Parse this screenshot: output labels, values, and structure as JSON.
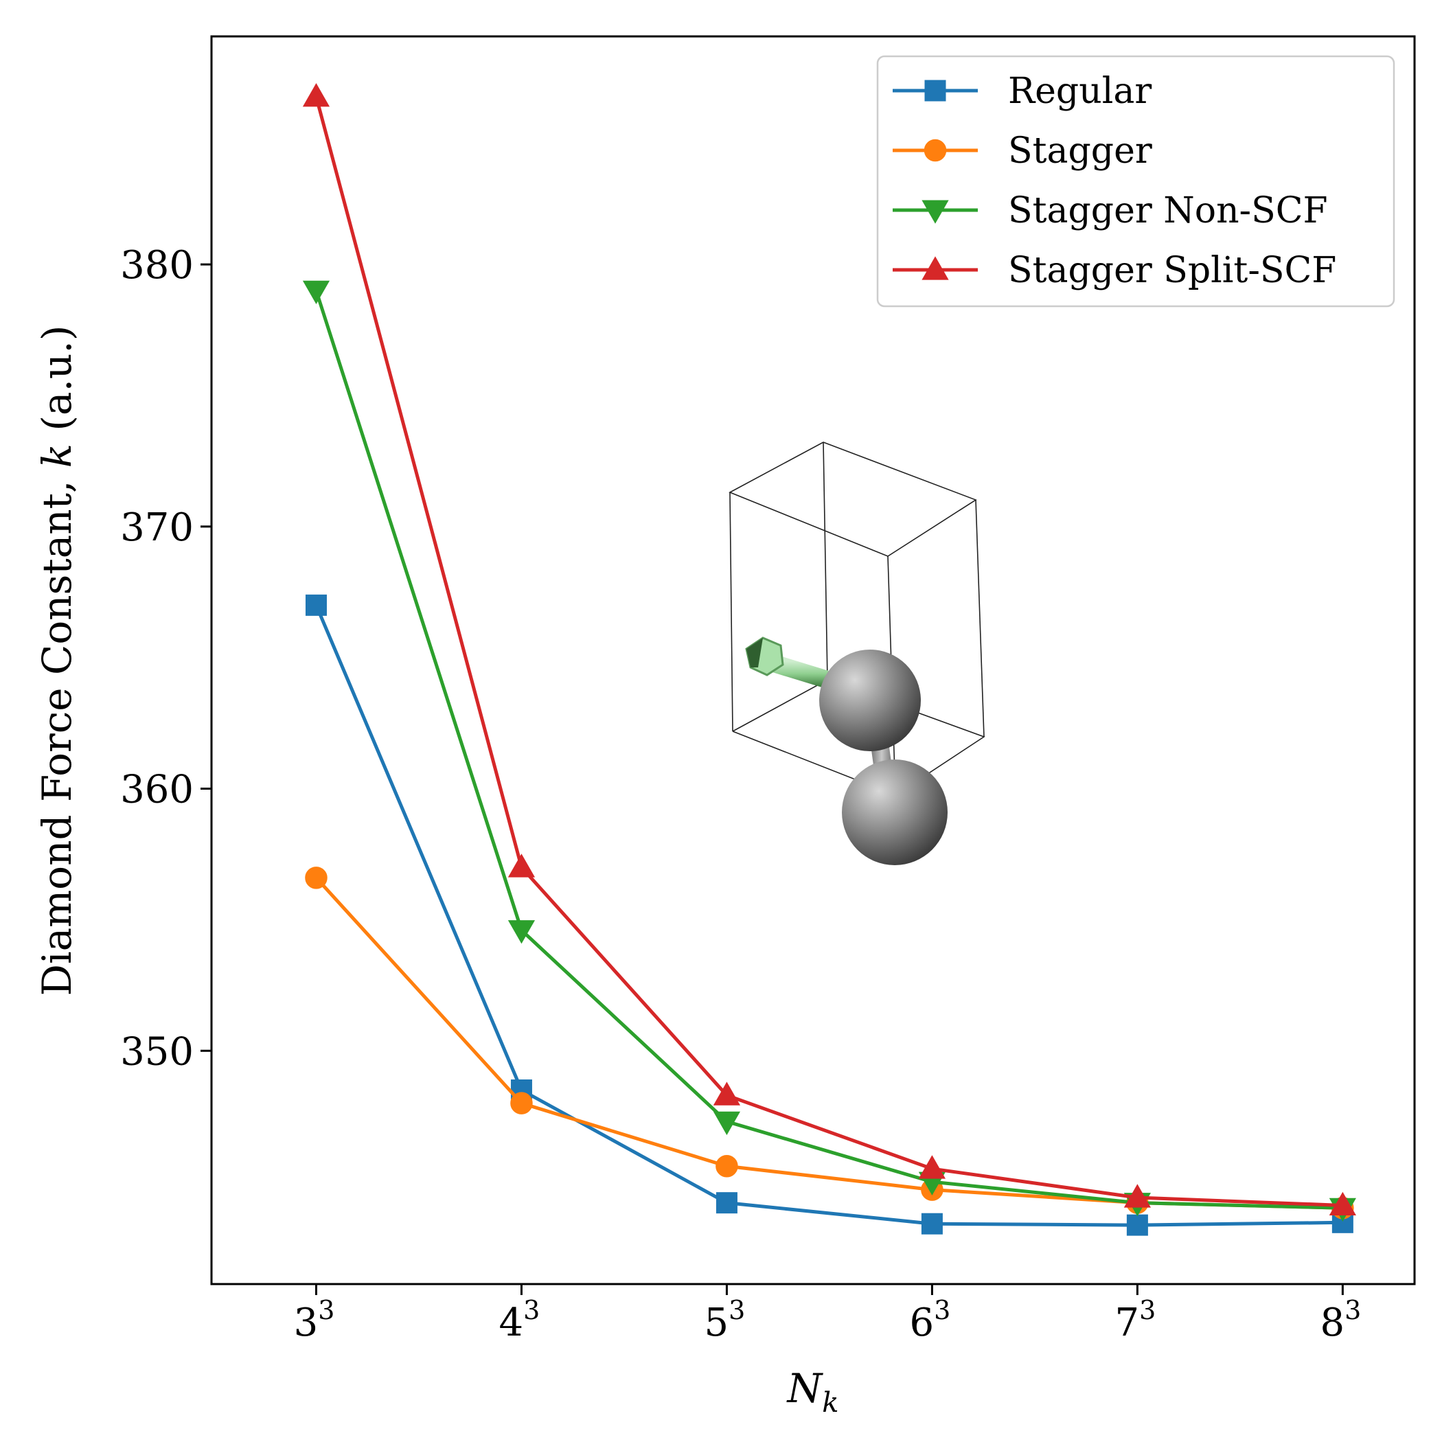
{
  "chart_data": {
    "type": "line",
    "xlabel": "N",
    "xlabel_sub": "k",
    "ylabel": "Diamond Force Constant, ",
    "ylabel_var": "k",
    "ylabel_unit": " (a.u.)",
    "x": [
      27,
      64,
      125,
      216,
      343,
      512
    ],
    "x_tick_labels": [
      {
        "base": "3",
        "exp": "3"
      },
      {
        "base": "4",
        "exp": "3"
      },
      {
        "base": "5",
        "exp": "3"
      },
      {
        "base": "6",
        "exp": "3"
      },
      {
        "base": "7",
        "exp": "3"
      },
      {
        "base": "8",
        "exp": "3"
      }
    ],
    "x_scale": "cube-root",
    "xlim": [
      2.49,
      8.35
    ],
    "ylim": [
      341.1,
      388.7
    ],
    "y_ticks": [
      350,
      360,
      370,
      380
    ],
    "y_tick_labels": [
      "350",
      "360",
      "370",
      "380"
    ],
    "grid": false,
    "legend_position": "upper right",
    "series": [
      {
        "name": "Regular",
        "color": "#1f77b4",
        "marker": "square",
        "values": [
          367.0,
          348.5,
          344.2,
          343.4,
          343.35,
          343.45
        ]
      },
      {
        "name": "Stagger",
        "color": "#ff7f0e",
        "marker": "circle",
        "values": [
          356.6,
          348.0,
          345.6,
          344.7,
          344.2,
          344.0
        ]
      },
      {
        "name": "Stagger Non-SCF",
        "color": "#2ca02c",
        "marker": "triangle-down",
        "values": [
          379.0,
          354.6,
          347.3,
          345.0,
          344.2,
          344.0
        ]
      },
      {
        "name": "Stagger Split-SCF",
        "color": "#d62728",
        "marker": "triangle-up",
        "values": [
          386.4,
          357.0,
          348.3,
          345.5,
          344.4,
          344.1
        ]
      }
    ]
  },
  "inset": {
    "description_icon": "diamond-unit-cell-icon",
    "atom_color": "#808080",
    "arrow_color": "#8fd08f"
  }
}
